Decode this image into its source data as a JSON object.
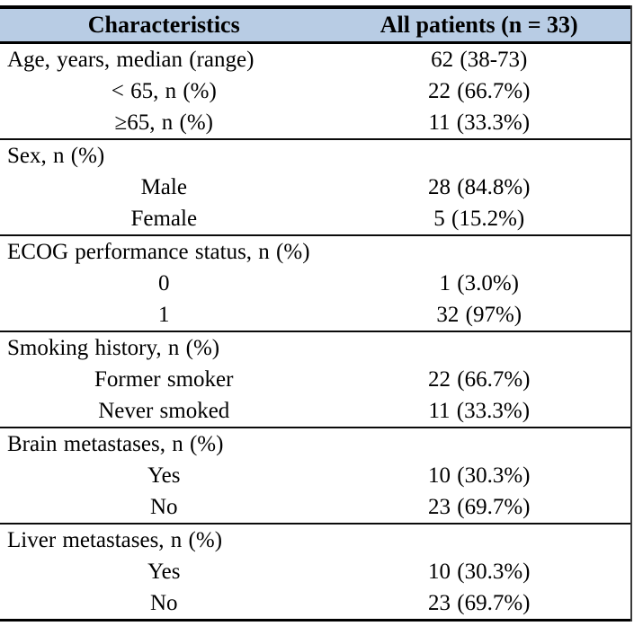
{
  "title": "Patient baseline characteristics table",
  "colors": {
    "header_bg": "#b8cce4",
    "border": "#000000",
    "text": "#000000"
  },
  "header": {
    "characteristics": "Characteristics",
    "all_patients": "All patients (n = 33)"
  },
  "sections": [
    {
      "name": "age",
      "rows": [
        {
          "label": "Age, years, median (range)",
          "value": "62 (38-73)",
          "indent": false
        },
        {
          "label": "< 65, n (%)",
          "value": "22 (66.7%)",
          "indent": true
        },
        {
          "label": "≥65, n (%)",
          "value": "11 (33.3%)",
          "indent": true
        }
      ]
    },
    {
      "name": "sex",
      "rows": [
        {
          "label": "Sex, n (%)",
          "value": "",
          "indent": false
        },
        {
          "label": "Male",
          "value": "28 (84.8%)",
          "indent": true
        },
        {
          "label": "Female",
          "value": "5 (15.2%)",
          "indent": true
        }
      ]
    },
    {
      "name": "ecog",
      "rows": [
        {
          "label": "ECOG performance status, n (%)",
          "value": "",
          "indent": false
        },
        {
          "label": "0",
          "value": "1 (3.0%)",
          "indent": true
        },
        {
          "label": "1",
          "value": "32 (97%)",
          "indent": true
        }
      ]
    },
    {
      "name": "smoking",
      "rows": [
        {
          "label": "Smoking history, n (%)",
          "value": "",
          "indent": false
        },
        {
          "label": "Former smoker",
          "value": "22 (66.7%)",
          "indent": true
        },
        {
          "label": "Never smoked",
          "value": "11 (33.3%)",
          "indent": true
        }
      ]
    },
    {
      "name": "brain-metastases",
      "rows": [
        {
          "label": "Brain metastases, n (%)",
          "value": "",
          "indent": false
        },
        {
          "label": "Yes",
          "value": "10 (30.3%)",
          "indent": true
        },
        {
          "label": "No",
          "value": "23 (69.7%)",
          "indent": true
        }
      ]
    },
    {
      "name": "liver-metastases",
      "rows": [
        {
          "label": "Liver metastases, n (%)",
          "value": "",
          "indent": false
        },
        {
          "label": "Yes",
          "value": "10 (30.3%)",
          "indent": true
        },
        {
          "label": "No",
          "value": "23 (69.7%)",
          "indent": true
        }
      ]
    }
  ]
}
